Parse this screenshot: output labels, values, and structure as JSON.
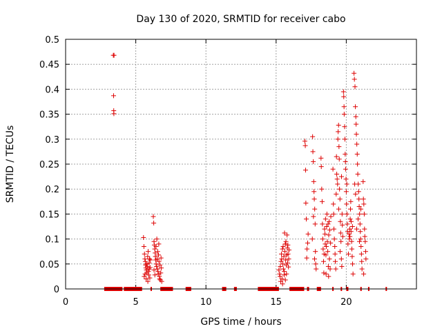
{
  "chart_data": {
    "type": "scatter",
    "title": "Day 130 of 2020, SRMTID for receiver cabo",
    "xlabel": "GPS time / hours",
    "ylabel": "SRMTID / TECUs",
    "xlim": [
      0,
      25
    ],
    "ylim": [
      0,
      0.5
    ],
    "xticks": [
      0,
      5,
      10,
      15,
      20
    ],
    "xtick_labels": [
      "0",
      "5",
      "10",
      "15",
      "20"
    ],
    "yticks": [
      0,
      0.05,
      0.1,
      0.15,
      0.2,
      0.25,
      0.3,
      0.35,
      0.4,
      0.45,
      0.5
    ],
    "ytick_labels": [
      "0",
      "0.05",
      "0.1",
      "0.15",
      "0.2",
      "0.25",
      "0.3",
      "0.35",
      "0.4",
      "0.45",
      "0.5"
    ],
    "grid": true,
    "marker": "+",
    "color": "#dd0000",
    "series": [
      {
        "name": "SRMTID",
        "points": [
          [
            3.4,
            0.468
          ],
          [
            3.45,
            0.468
          ],
          [
            3.42,
            0.387
          ],
          [
            3.43,
            0.357
          ],
          [
            3.44,
            0.351
          ],
          [
            5.55,
            0.103
          ],
          [
            5.58,
            0.085
          ],
          [
            5.62,
            0.07
          ],
          [
            5.65,
            0.06
          ],
          [
            5.68,
            0.055
          ],
          [
            5.7,
            0.048
          ],
          [
            5.72,
            0.042
          ],
          [
            5.75,
            0.038
          ],
          [
            5.78,
            0.05
          ],
          [
            5.8,
            0.032
          ],
          [
            5.82,
            0.045
          ],
          [
            5.85,
            0.065
          ],
          [
            5.88,
            0.075
          ],
          [
            5.9,
            0.035
          ],
          [
            5.92,
            0.028
          ],
          [
            5.95,
            0.052
          ],
          [
            5.98,
            0.06
          ],
          [
            6.0,
            0.022
          ],
          [
            6.02,
            0.043
          ],
          [
            5.6,
            0.025
          ],
          [
            5.66,
            0.03
          ],
          [
            5.74,
            0.02
          ],
          [
            5.86,
            0.015
          ],
          [
            5.96,
            0.04
          ],
          [
            6.04,
            0.058
          ],
          [
            6.25,
            0.145
          ],
          [
            6.28,
            0.132
          ],
          [
            6.3,
            0.095
          ],
          [
            6.32,
            0.088
          ],
          [
            6.35,
            0.08
          ],
          [
            6.38,
            0.072
          ],
          [
            6.4,
            0.065
          ],
          [
            6.42,
            0.058
          ],
          [
            6.45,
            0.05
          ],
          [
            6.48,
            0.045
          ],
          [
            6.5,
            0.1
          ],
          [
            6.52,
            0.06
          ],
          [
            6.55,
            0.04
          ],
          [
            6.58,
            0.035
          ],
          [
            6.6,
            0.03
          ],
          [
            6.62,
            0.068
          ],
          [
            6.65,
            0.055
          ],
          [
            6.68,
            0.025
          ],
          [
            6.7,
            0.02
          ],
          [
            6.72,
            0.048
          ],
          [
            6.75,
            0.018
          ],
          [
            6.78,
            0.032
          ],
          [
            6.8,
            0.062
          ],
          [
            6.82,
            0.042
          ],
          [
            6.85,
            0.015
          ],
          [
            6.3,
            0.038
          ],
          [
            6.36,
            0.028
          ],
          [
            6.44,
            0.085
          ],
          [
            6.56,
            0.075
          ],
          [
            6.64,
            0.09
          ],
          [
            15.2,
            0.038
          ],
          [
            15.25,
            0.03
          ],
          [
            15.28,
            0.025
          ],
          [
            15.3,
            0.045
          ],
          [
            15.35,
            0.055
          ],
          [
            15.38,
            0.07
          ],
          [
            15.4,
            0.06
          ],
          [
            15.42,
            0.02
          ],
          [
            15.45,
            0.08
          ],
          [
            15.48,
            0.05
          ],
          [
            15.5,
            0.085
          ],
          [
            15.52,
            0.04
          ],
          [
            15.55,
            0.065
          ],
          [
            15.58,
            0.035
          ],
          [
            15.6,
            0.112
          ],
          [
            15.62,
            0.075
          ],
          [
            15.65,
            0.09
          ],
          [
            15.68,
            0.058
          ],
          [
            15.7,
            0.095
          ],
          [
            15.72,
            0.048
          ],
          [
            15.75,
            0.068
          ],
          [
            15.78,
            0.108
          ],
          [
            15.8,
            0.082
          ],
          [
            15.82,
            0.052
          ],
          [
            15.85,
            0.07
          ],
          [
            15.88,
            0.044
          ],
          [
            15.9,
            0.06
          ],
          [
            15.33,
            0.015
          ],
          [
            15.46,
            0.01
          ],
          [
            15.57,
            0.028
          ],
          [
            15.66,
            0.018
          ],
          [
            15.74,
            0.03
          ],
          [
            15.84,
            0.088
          ],
          [
            15.92,
            0.078
          ],
          [
            17.05,
            0.296
          ],
          [
            17.08,
            0.287
          ],
          [
            17.1,
            0.238
          ],
          [
            17.12,
            0.172
          ],
          [
            17.15,
            0.14
          ],
          [
            17.18,
            0.062
          ],
          [
            17.2,
            0.08
          ],
          [
            17.25,
            0.092
          ],
          [
            17.28,
            0.11
          ],
          [
            17.6,
            0.305
          ],
          [
            17.62,
            0.275
          ],
          [
            17.65,
            0.255
          ],
          [
            17.68,
            0.215
          ],
          [
            17.7,
            0.195
          ],
          [
            17.72,
            0.18
          ],
          [
            17.75,
            0.16
          ],
          [
            17.78,
            0.13
          ],
          [
            17.8,
            0.075
          ],
          [
            17.82,
            0.05
          ],
          [
            17.85,
            0.04
          ],
          [
            17.58,
            0.1
          ],
          [
            17.66,
            0.145
          ],
          [
            17.74,
            0.06
          ],
          [
            18.2,
            0.262
          ],
          [
            18.22,
            0.245
          ],
          [
            18.25,
            0.2
          ],
          [
            18.28,
            0.175
          ],
          [
            18.3,
            0.13
          ],
          [
            18.32,
            0.1
          ],
          [
            18.35,
            0.08
          ],
          [
            18.38,
            0.055
          ],
          [
            18.4,
            0.032
          ],
          [
            18.45,
            0.12
          ],
          [
            18.48,
            0.11
          ],
          [
            18.5,
            0.09
          ],
          [
            18.52,
            0.14
          ],
          [
            18.55,
            0.068
          ],
          [
            18.58,
            0.085
          ],
          [
            18.6,
            0.125
          ],
          [
            18.62,
            0.15
          ],
          [
            18.65,
            0.095
          ],
          [
            18.68,
            0.075
          ],
          [
            18.7,
            0.13
          ],
          [
            18.72,
            0.045
          ],
          [
            18.75,
            0.108
          ],
          [
            18.78,
            0.135
          ],
          [
            18.8,
            0.06
          ],
          [
            18.82,
            0.118
          ],
          [
            18.85,
            0.04
          ],
          [
            18.88,
            0.092
          ],
          [
            18.9,
            0.145
          ],
          [
            18.42,
            0.07
          ],
          [
            18.56,
            0.03
          ],
          [
            18.74,
            0.025
          ],
          [
            19.05,
            0.24
          ],
          [
            19.08,
            0.17
          ],
          [
            19.1,
            0.15
          ],
          [
            19.12,
            0.12
          ],
          [
            19.15,
            0.1
          ],
          [
            19.18,
            0.085
          ],
          [
            19.2,
            0.07
          ],
          [
            19.22,
            0.055
          ],
          [
            19.25,
            0.04
          ],
          [
            19.3,
            0.265
          ],
          [
            19.32,
            0.23
          ],
          [
            19.35,
            0.22
          ],
          [
            19.38,
            0.21
          ],
          [
            19.4,
            0.3
          ],
          [
            19.42,
            0.315
          ],
          [
            19.45,
            0.328
          ],
          [
            19.48,
            0.285
          ],
          [
            19.5,
            0.26
          ],
          [
            19.52,
            0.2
          ],
          [
            19.55,
            0.18
          ],
          [
            19.58,
            0.135
          ],
          [
            19.6,
            0.112
          ],
          [
            19.62,
            0.095
          ],
          [
            19.65,
            0.06
          ],
          [
            19.68,
            0.045
          ],
          [
            19.7,
            0.15
          ],
          [
            19.72,
            0.128
          ],
          [
            19.75,
            0.105
          ],
          [
            19.28,
            0.19
          ],
          [
            19.46,
            0.16
          ],
          [
            19.56,
            0.075
          ],
          [
            19.66,
            0.225
          ],
          [
            19.8,
            0.395
          ],
          [
            19.82,
            0.385
          ],
          [
            19.85,
            0.35
          ],
          [
            19.88,
            0.325
          ],
          [
            19.9,
            0.3
          ],
          [
            19.92,
            0.27
          ],
          [
            19.95,
            0.24
          ],
          [
            19.98,
            0.22
          ],
          [
            20.0,
            0.195
          ],
          [
            20.02,
            0.17
          ],
          [
            20.05,
            0.15
          ],
          [
            20.08,
            0.13
          ],
          [
            20.1,
            0.115
          ],
          [
            20.12,
            0.09
          ],
          [
            20.15,
            0.07
          ],
          [
            19.84,
            0.365
          ],
          [
            19.94,
            0.255
          ],
          [
            20.04,
            0.21
          ],
          [
            20.2,
            0.11
          ],
          [
            20.22,
            0.1
          ],
          [
            20.25,
            0.12
          ],
          [
            20.28,
            0.14
          ],
          [
            20.3,
            0.16
          ],
          [
            20.32,
            0.175
          ],
          [
            20.35,
            0.135
          ],
          [
            20.38,
            0.095
          ],
          [
            20.4,
            0.08
          ],
          [
            20.42,
            0.065
          ],
          [
            20.45,
            0.05
          ],
          [
            20.48,
            0.03
          ],
          [
            20.26,
            0.105
          ],
          [
            20.34,
            0.115
          ],
          [
            20.44,
            0.125
          ],
          [
            20.55,
            0.432
          ],
          [
            20.58,
            0.42
          ],
          [
            20.62,
            0.405
          ],
          [
            20.65,
            0.365
          ],
          [
            20.68,
            0.345
          ],
          [
            20.7,
            0.33
          ],
          [
            20.72,
            0.31
          ],
          [
            20.75,
            0.29
          ],
          [
            20.78,
            0.27
          ],
          [
            20.8,
            0.25
          ],
          [
            20.82,
            0.23
          ],
          [
            20.85,
            0.21
          ],
          [
            20.88,
            0.195
          ],
          [
            20.9,
            0.18
          ],
          [
            20.92,
            0.165
          ],
          [
            20.95,
            0.15
          ],
          [
            20.98,
            0.13
          ],
          [
            21.0,
            0.115
          ],
          [
            21.02,
            0.1
          ],
          [
            21.05,
            0.085
          ],
          [
            21.08,
            0.07
          ],
          [
            21.1,
            0.055
          ],
          [
            21.12,
            0.04
          ],
          [
            20.6,
            0.21
          ],
          [
            20.66,
            0.19
          ],
          [
            20.74,
            0.12
          ],
          [
            20.84,
            0.14
          ],
          [
            20.94,
            0.095
          ],
          [
            21.04,
            0.16
          ],
          [
            21.2,
            0.215
          ],
          [
            21.22,
            0.18
          ],
          [
            21.25,
            0.17
          ],
          [
            21.28,
            0.15
          ],
          [
            21.3,
            0.12
          ],
          [
            21.32,
            0.105
          ],
          [
            21.35,
            0.095
          ],
          [
            21.38,
            0.075
          ],
          [
            21.4,
            0.06
          ],
          [
            21.24,
            0.03
          ]
        ]
      }
    ],
    "zero_runs": [
      [
        2.75,
        4.05
      ],
      [
        4.15,
        5.45
      ],
      [
        6.05,
        6.12
      ],
      [
        6.75,
        7.65
      ],
      [
        8.55,
        8.95
      ],
      [
        11.15,
        11.45
      ],
      [
        12.0,
        12.2
      ],
      [
        13.7,
        15.2
      ],
      [
        15.95,
        17.0
      ],
      [
        17.2,
        17.35
      ],
      [
        17.9,
        18.2
      ],
      [
        19.0,
        19.1
      ],
      [
        19.6,
        19.7
      ],
      [
        20.0,
        20.15
      ],
      [
        21.0,
        21.1
      ],
      [
        21.55,
        21.65
      ],
      [
        22.8,
        22.9
      ]
    ]
  }
}
